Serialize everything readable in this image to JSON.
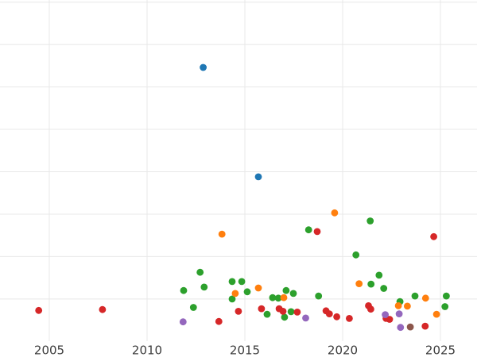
{
  "figure": {
    "background": "#ffffff",
    "grid_color": "#e8e8e8",
    "tick_label_color": "#3c3c3c"
  },
  "chart_data": {
    "type": "scatter",
    "title": "",
    "xlabel": "",
    "ylabel": "",
    "legend": "none",
    "grid": "on",
    "x_axis": {
      "tick_labels": [
        "2005",
        "2010",
        "2015",
        "2020",
        "2025"
      ],
      "tick_values": [
        2005,
        2010,
        2015,
        2020,
        2025
      ],
      "range_years": [
        2002.5,
        2026.9
      ]
    },
    "y_axis": {
      "tick_labels_visible": false,
      "note": "y tick labels cropped off-screen; values given in gridline units above plot bottom",
      "gridline_units": [
        1,
        2,
        3,
        4,
        5,
        6,
        7,
        8
      ],
      "range_units": [
        0,
        8.05
      ]
    },
    "point_colors": {
      "blue": "#1f77b4",
      "orange": "#ff7f0e",
      "green": "#2ca02c",
      "red": "#d62728",
      "purple": "#9467bd",
      "brown": "#8c564b"
    },
    "series": [
      {
        "name": "series-blue",
        "color": "#1f77b4",
        "points": [
          [
            2012.87,
            6.46
          ],
          [
            2015.69,
            3.88
          ]
        ]
      },
      {
        "name": "series-green",
        "color": "#2ca02c",
        "points": [
          [
            2011.87,
            1.2
          ],
          [
            2012.37,
            0.8
          ],
          [
            2012.71,
            1.63
          ],
          [
            2012.92,
            1.28
          ],
          [
            2014.35,
            1.41
          ],
          [
            2014.35,
            1.0
          ],
          [
            2014.84,
            1.41
          ],
          [
            2015.12,
            1.17
          ],
          [
            2016.14,
            0.64
          ],
          [
            2016.42,
            1.03
          ],
          [
            2016.71,
            1.02
          ],
          [
            2017.03,
            0.57
          ],
          [
            2017.11,
            1.2
          ],
          [
            2017.36,
            0.7
          ],
          [
            2017.48,
            1.13
          ],
          [
            2018.26,
            2.63
          ],
          [
            2018.77,
            1.07
          ],
          [
            2020.68,
            2.04
          ],
          [
            2021.41,
            2.84
          ],
          [
            2021.45,
            1.35
          ],
          [
            2021.86,
            1.56
          ],
          [
            2022.1,
            1.25
          ],
          [
            2022.93,
            0.94
          ],
          [
            2023.7,
            1.07
          ],
          [
            2025.23,
            0.82
          ],
          [
            2025.3,
            1.07
          ]
        ]
      },
      {
        "name": "series-orange",
        "color": "#ff7f0e",
        "points": [
          [
            2013.83,
            2.53
          ],
          [
            2014.51,
            1.13
          ],
          [
            2015.69,
            1.26
          ],
          [
            2016.99,
            1.03
          ],
          [
            2019.59,
            3.03
          ],
          [
            2020.84,
            1.36
          ],
          [
            2022.85,
            0.84
          ],
          [
            2023.31,
            0.83
          ],
          [
            2024.24,
            1.02
          ],
          [
            2024.8,
            0.64
          ]
        ]
      },
      {
        "name": "series-red",
        "color": "#d62728",
        "points": [
          [
            2004.46,
            0.73
          ],
          [
            2007.72,
            0.75
          ],
          [
            2013.67,
            0.47
          ],
          [
            2014.67,
            0.71
          ],
          [
            2015.85,
            0.77
          ],
          [
            2016.75,
            0.77
          ],
          [
            2016.95,
            0.71
          ],
          [
            2017.68,
            0.69
          ],
          [
            2018.7,
            2.59
          ],
          [
            2019.15,
            0.72
          ],
          [
            2019.32,
            0.65
          ],
          [
            2019.7,
            0.58
          ],
          [
            2020.34,
            0.54
          ],
          [
            2021.32,
            0.84
          ],
          [
            2021.44,
            0.76
          ],
          [
            2022.22,
            0.54
          ],
          [
            2022.4,
            0.52
          ],
          [
            2024.22,
            0.36
          ],
          [
            2024.66,
            2.47
          ]
        ]
      },
      {
        "name": "series-purple",
        "color": "#9467bd",
        "points": [
          [
            2011.84,
            0.46
          ],
          [
            2018.11,
            0.55
          ],
          [
            2022.18,
            0.63
          ],
          [
            2022.89,
            0.65
          ],
          [
            2022.96,
            0.33
          ]
        ]
      },
      {
        "name": "series-brown",
        "color": "#8c564b",
        "points": [
          [
            2023.46,
            0.34
          ]
        ]
      }
    ]
  }
}
